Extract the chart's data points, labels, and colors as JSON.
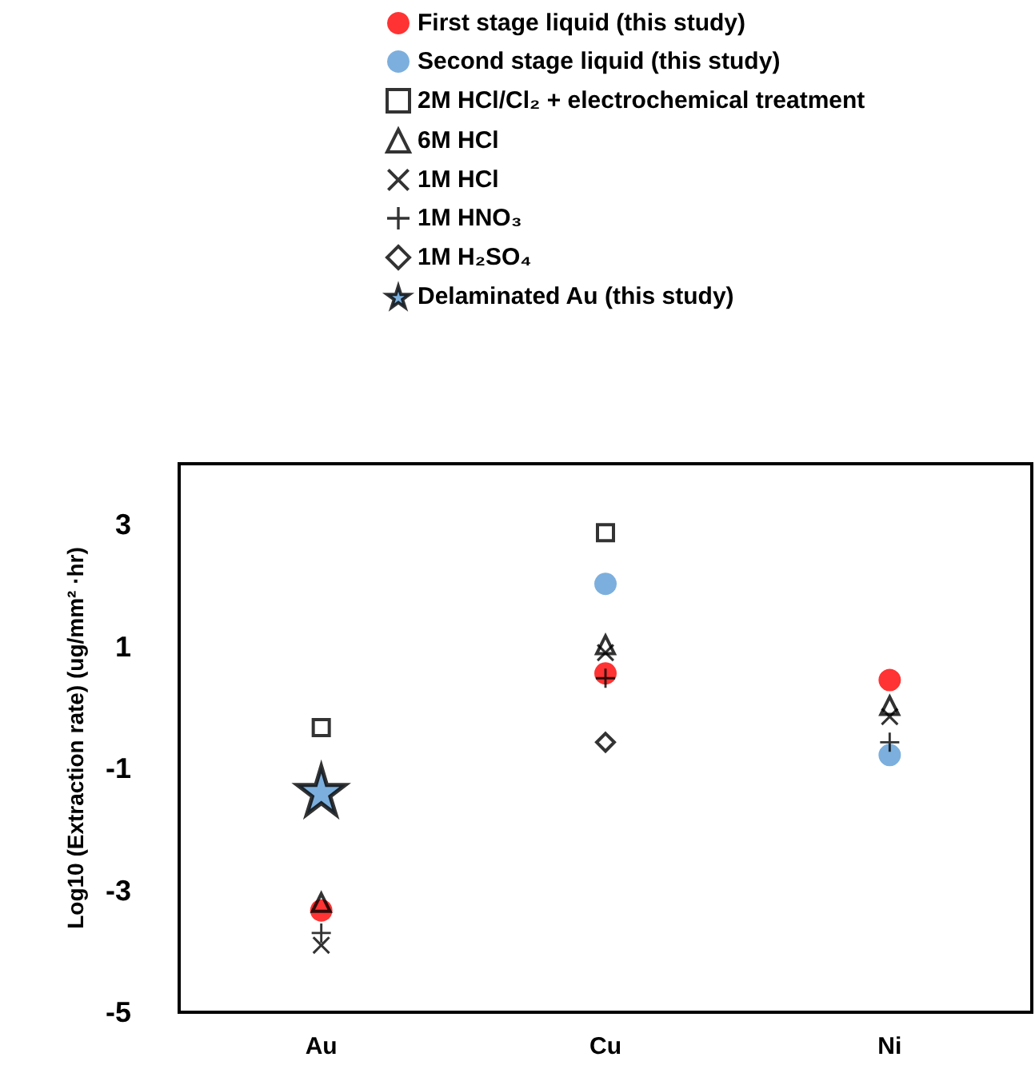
{
  "chart_data": {
    "type": "scatter",
    "ylabel": "Log10 (Extraction rate) (ug/mm² ·hr)",
    "categories": [
      "Au",
      "Cu",
      "Ni"
    ],
    "series": [
      {
        "name": "First stage liquid (this study)",
        "color": "#ff0000",
        "marker": "circle",
        "values": [
          -3.33,
          0.56,
          0.45
        ]
      },
      {
        "name": "Second stage liquid (this study)",
        "color": "#5b9bd5",
        "marker": "circle",
        "values": [
          null,
          2.03,
          -0.78
        ]
      },
      {
        "name": "2M HCl/Cl₂ + electrochemical treatment",
        "color": "#000000",
        "marker": "square",
        "values": [
          -0.33,
          2.87,
          null
        ]
      },
      {
        "name": "6M HCl",
        "color": "#000000",
        "marker": "triangle",
        "values": [
          -3.2,
          1.03,
          0.03
        ]
      },
      {
        "name": "1M HCl",
        "color": "#000000",
        "marker": "cross",
        "values": [
          -3.9,
          0.9,
          -0.15
        ]
      },
      {
        "name": "1M HNO₃",
        "color": "#000000",
        "marker": "plus",
        "values": [
          -3.7,
          0.48,
          -0.57
        ]
      },
      {
        "name": "1M H₂SO₄",
        "color": "#000000",
        "marker": "diamond",
        "values": [
          null,
          -0.57,
          null
        ]
      },
      {
        "name": "Delaminated Au (this study)",
        "color": "#5b9bd5",
        "marker": "star",
        "values": [
          -1.36,
          null,
          null
        ]
      }
    ],
    "ylim": [
      -5,
      4
    ],
    "yticks": [
      -5,
      -3,
      -1,
      1,
      3
    ],
    "grid": false,
    "legend": "top"
  }
}
